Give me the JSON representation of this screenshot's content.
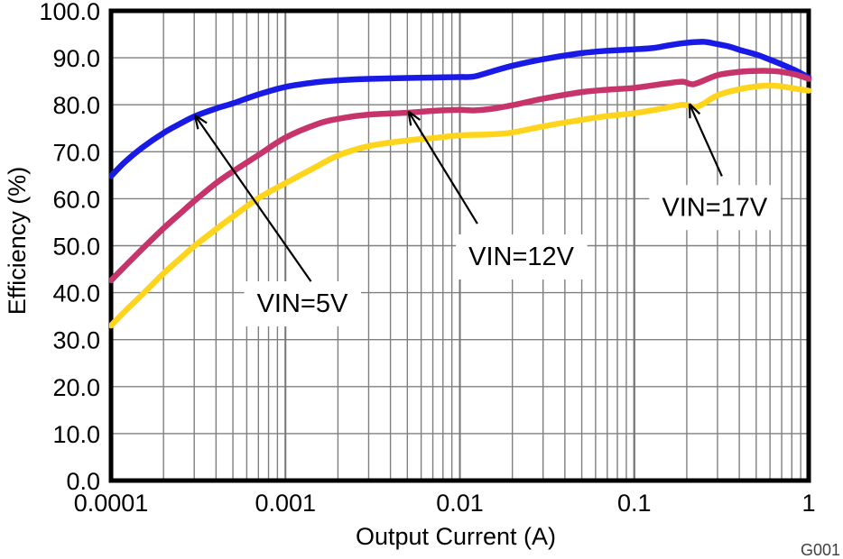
{
  "chart_data": {
    "type": "line",
    "x_axis": {
      "label": "Output Current (A)",
      "scale": "log",
      "min": 0.0001,
      "max": 1,
      "ticks": [
        {
          "value": 0.0001,
          "label": "0.0001"
        },
        {
          "value": 0.001,
          "label": "0.001"
        },
        {
          "value": 0.01,
          "label": "0.01"
        },
        {
          "value": 0.1,
          "label": "0.1"
        },
        {
          "value": 1,
          "label": "1"
        }
      ]
    },
    "y_axis": {
      "label": "Efficiency (%)",
      "min": 0,
      "max": 100,
      "ticks": [
        {
          "value": 0,
          "label": "0.0"
        },
        {
          "value": 10,
          "label": "10.0"
        },
        {
          "value": 20,
          "label": "20.0"
        },
        {
          "value": 30,
          "label": "30.0"
        },
        {
          "value": 40,
          "label": "40.0"
        },
        {
          "value": 50,
          "label": "50.0"
        },
        {
          "value": 60,
          "label": "60.0"
        },
        {
          "value": 70,
          "label": "70.0"
        },
        {
          "value": 80,
          "label": "80.0"
        },
        {
          "value": 90,
          "label": "90.0"
        },
        {
          "value": 100,
          "label": "100.0"
        }
      ]
    },
    "grid": {
      "show": true,
      "color": "#7F7F7F",
      "frame_color": "#000000"
    },
    "series": [
      {
        "name": "VIN=5V",
        "color": "#1A1AE6",
        "points": [
          [
            0.0001,
            64.8
          ],
          [
            0.00012,
            67.8
          ],
          [
            0.00015,
            70.8
          ],
          [
            0.0002,
            74.0
          ],
          [
            0.00025,
            76.0
          ],
          [
            0.0003,
            77.5
          ],
          [
            0.0004,
            79.2
          ],
          [
            0.0005,
            80.3
          ],
          [
            0.0007,
            82.2
          ],
          [
            0.001,
            83.8
          ],
          [
            0.0015,
            84.8
          ],
          [
            0.002,
            85.2
          ],
          [
            0.003,
            85.5
          ],
          [
            0.005,
            85.7
          ],
          [
            0.007,
            85.8
          ],
          [
            0.01,
            85.9
          ],
          [
            0.012,
            86.0
          ],
          [
            0.015,
            87.0
          ],
          [
            0.02,
            88.3
          ],
          [
            0.03,
            89.7
          ],
          [
            0.05,
            91.0
          ],
          [
            0.07,
            91.5
          ],
          [
            0.1,
            91.8
          ],
          [
            0.13,
            92.1
          ],
          [
            0.16,
            92.7
          ],
          [
            0.2,
            93.2
          ],
          [
            0.25,
            93.4
          ],
          [
            0.3,
            92.9
          ],
          [
            0.35,
            92.4
          ],
          [
            0.4,
            91.7
          ],
          [
            0.5,
            90.7
          ],
          [
            0.6,
            89.6
          ],
          [
            0.7,
            88.6
          ],
          [
            0.85,
            87.2
          ],
          [
            1,
            85.8
          ]
        ]
      },
      {
        "name": "VIN=12V",
        "color": "#C7336B",
        "points": [
          [
            0.0001,
            42.6
          ],
          [
            0.00012,
            45.6
          ],
          [
            0.00015,
            49.2
          ],
          [
            0.0002,
            53.7
          ],
          [
            0.00025,
            56.9
          ],
          [
            0.0003,
            59.5
          ],
          [
            0.0004,
            63.3
          ],
          [
            0.0005,
            65.8
          ],
          [
            0.0007,
            69.3
          ],
          [
            0.001,
            73.0
          ],
          [
            0.0015,
            75.8
          ],
          [
            0.002,
            77.0
          ],
          [
            0.003,
            77.9
          ],
          [
            0.005,
            78.3
          ],
          [
            0.007,
            78.7
          ],
          [
            0.01,
            78.9
          ],
          [
            0.012,
            78.8
          ],
          [
            0.015,
            79.1
          ],
          [
            0.02,
            79.9
          ],
          [
            0.03,
            81.3
          ],
          [
            0.05,
            82.7
          ],
          [
            0.07,
            83.2
          ],
          [
            0.1,
            83.6
          ],
          [
            0.15,
            84.5
          ],
          [
            0.19,
            84.9
          ],
          [
            0.22,
            84.4
          ],
          [
            0.3,
            86.3
          ],
          [
            0.4,
            87.0
          ],
          [
            0.5,
            87.2
          ],
          [
            0.6,
            87.2
          ],
          [
            0.7,
            87.0
          ],
          [
            0.85,
            86.4
          ],
          [
            1,
            85.5
          ]
        ]
      },
      {
        "name": "VIN=17V",
        "color": "#FFD41C",
        "points": [
          [
            0.0001,
            33.0
          ],
          [
            0.00012,
            36.0
          ],
          [
            0.00015,
            39.5
          ],
          [
            0.0002,
            44.1
          ],
          [
            0.00025,
            47.3
          ],
          [
            0.0003,
            49.9
          ],
          [
            0.0004,
            53.5
          ],
          [
            0.0005,
            56.2
          ],
          [
            0.0007,
            60.1
          ],
          [
            0.001,
            63.3
          ],
          [
            0.0015,
            66.8
          ],
          [
            0.002,
            69.2
          ],
          [
            0.003,
            71.2
          ],
          [
            0.005,
            72.4
          ],
          [
            0.007,
            72.9
          ],
          [
            0.01,
            73.5
          ],
          [
            0.015,
            73.7
          ],
          [
            0.02,
            74.1
          ],
          [
            0.03,
            75.4
          ],
          [
            0.05,
            76.8
          ],
          [
            0.07,
            77.6
          ],
          [
            0.1,
            78.2
          ],
          [
            0.15,
            79.3
          ],
          [
            0.19,
            80.0
          ],
          [
            0.23,
            79.6
          ],
          [
            0.3,
            82.0
          ],
          [
            0.4,
            83.3
          ],
          [
            0.5,
            83.9
          ],
          [
            0.6,
            84.1
          ],
          [
            0.7,
            83.9
          ],
          [
            0.85,
            83.4
          ],
          [
            1,
            83.0
          ]
        ]
      }
    ],
    "annotations": [
      {
        "text": "VIN=5V",
        "label_at": {
          "x": 0.00125,
          "y": 37.8
        },
        "arrow_from": {
          "x": 0.0014,
          "y": 42.4
        },
        "arrow_to": {
          "x": 0.000302,
          "y": 77.8
        }
      },
      {
        "text": "VIN=12V",
        "label_at": {
          "x": 0.0225,
          "y": 47.8
        },
        "arrow_from": {
          "x": 0.0126,
          "y": 54.7
        },
        "arrow_to": {
          "x": 0.00507,
          "y": 78.6
        }
      },
      {
        "text": "VIN=17V",
        "label_at": {
          "x": 0.289,
          "y": 58.3
        },
        "arrow_from": {
          "x": 0.318,
          "y": 64.8
        },
        "arrow_to": {
          "x": 0.207,
          "y": 80.2
        }
      }
    ],
    "watermark": "G001"
  }
}
